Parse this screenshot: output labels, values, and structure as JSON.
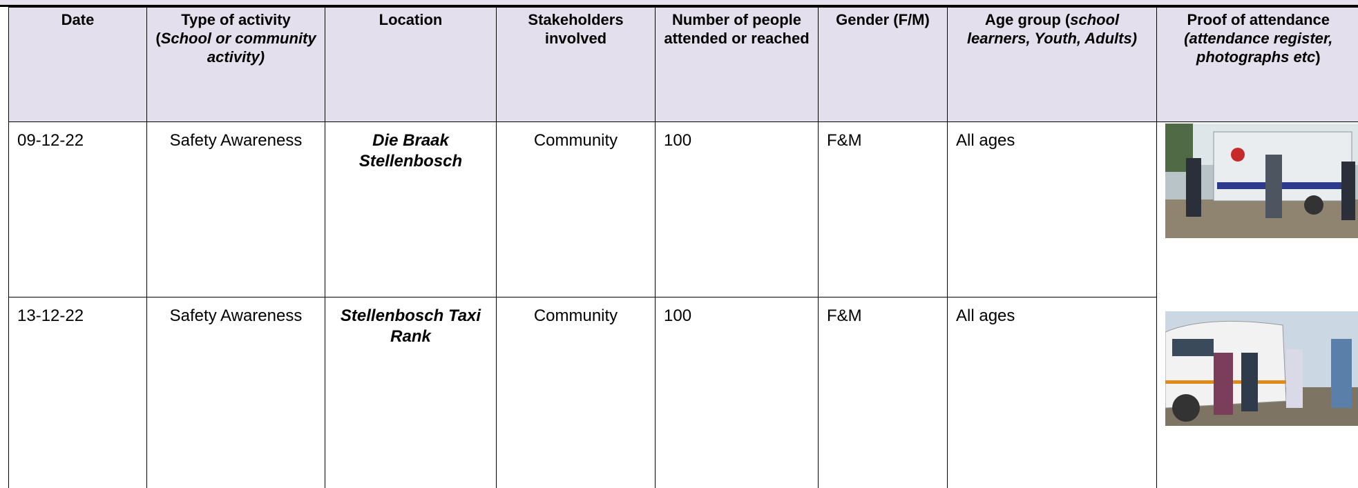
{
  "table": {
    "header": [
      [
        {
          "text": "Date",
          "italic": false
        }
      ],
      [
        {
          "text": "Type of activity (",
          "italic": false
        },
        {
          "text": "School or community activity)",
          "italic": true
        }
      ],
      [
        {
          "text": "Location",
          "italic": false
        }
      ],
      [
        {
          "text": "Stakeholders involved",
          "italic": false
        }
      ],
      [
        {
          "text": "Number of people attended or reached",
          "italic": false
        }
      ],
      [
        {
          "text": "Gender (F/M)",
          "italic": false
        }
      ],
      [
        {
          "text": "Age group (",
          "italic": false
        },
        {
          "text": "school learners, Youth, Adults)",
          "italic": true
        }
      ],
      [
        {
          "text": "Proof of attendance",
          "italic": false
        },
        {
          "text": " (attendance register, photographs etc",
          "italic": true
        },
        {
          "text": ")",
          "italic": false
        }
      ]
    ],
    "rows": [
      [
        "09-12-22",
        "Safety Awareness",
        "Die Braak Stellenbosch",
        "Community",
        100,
        "F&M",
        "All ages"
      ],
      [
        "13-12-22",
        "Safety Awareness",
        "Stellenbosch Taxi Rank",
        "Community",
        100,
        "F&M",
        "All ages"
      ]
    ]
  }
}
